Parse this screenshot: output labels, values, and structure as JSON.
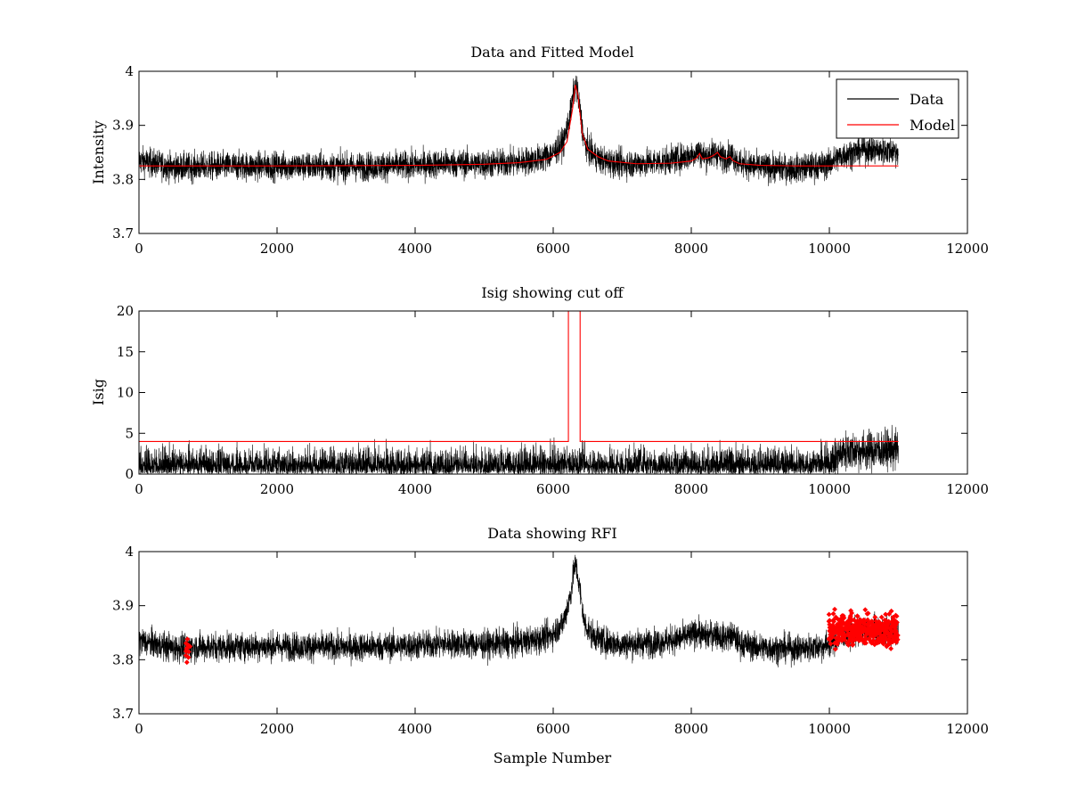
{
  "chart_data": [
    {
      "type": "line",
      "title": "Data and Fitted Model",
      "xlabel": "",
      "ylabel": "Intensity",
      "xlim": [
        0,
        12000
      ],
      "ylim": [
        3.7,
        4.0
      ],
      "xticks": [
        0,
        2000,
        4000,
        6000,
        8000,
        10000,
        12000
      ],
      "xtick_labels": [
        "0",
        "2000",
        "4000",
        "6000",
        "8000",
        "10000",
        "12000"
      ],
      "yticks": [
        3.7,
        3.8,
        3.9,
        4.0
      ],
      "ytick_labels": [
        "3.7",
        "3.8",
        "3.9",
        "4"
      ],
      "legend": {
        "location": "top-right",
        "entries": [
          "Data",
          "Model"
        ]
      },
      "series": [
        {
          "name": "Data",
          "color": "#000000",
          "kind": "noisy",
          "noise": 0.013,
          "x": [
            0,
            500,
            1000,
            2000,
            3000,
            4000,
            4500,
            5000,
            5500,
            5800,
            6000,
            6150,
            6250,
            6300,
            6330,
            6380,
            6450,
            6550,
            6700,
            7000,
            7500,
            7800,
            8000,
            8100,
            8200,
            8350,
            8450,
            8600,
            8700,
            9000,
            9500,
            9900,
            10000,
            10200,
            10500,
            11000
          ],
          "y": [
            3.835,
            3.822,
            3.824,
            3.825,
            3.823,
            3.826,
            3.83,
            3.828,
            3.832,
            3.838,
            3.848,
            3.87,
            3.92,
            3.965,
            3.975,
            3.935,
            3.868,
            3.848,
            3.835,
            3.828,
            3.832,
            3.838,
            3.845,
            3.852,
            3.842,
            3.85,
            3.84,
            3.845,
            3.83,
            3.822,
            3.82,
            3.825,
            3.83,
            3.845,
            3.855,
            3.852
          ]
        },
        {
          "name": "Model",
          "color": "#ff0000",
          "kind": "line",
          "x": [
            0,
            2000,
            4000,
            5000,
            5500,
            5900,
            6100,
            6200,
            6280,
            6320,
            6360,
            6420,
            6500,
            6650,
            6800,
            7200,
            7700,
            8000,
            8080,
            8120,
            8160,
            8250,
            8330,
            8380,
            8420,
            8500,
            8560,
            8600,
            8700,
            9000,
            9500,
            10000,
            11000
          ],
          "y": [
            3.825,
            3.825,
            3.826,
            3.828,
            3.831,
            3.837,
            3.85,
            3.87,
            3.93,
            3.975,
            3.955,
            3.885,
            3.856,
            3.842,
            3.834,
            3.829,
            3.83,
            3.834,
            3.84,
            3.848,
            3.838,
            3.84,
            3.845,
            3.85,
            3.842,
            3.838,
            3.842,
            3.835,
            3.829,
            3.826,
            3.825,
            3.825,
            3.825
          ]
        }
      ]
    },
    {
      "type": "line",
      "title": "Isig showing cut off",
      "xlabel": "",
      "ylabel": "Isig",
      "xlim": [
        0,
        12000
      ],
      "ylim": [
        0,
        20
      ],
      "xticks": [
        0,
        2000,
        4000,
        6000,
        8000,
        10000,
        12000
      ],
      "xtick_labels": [
        "0",
        "2000",
        "4000",
        "6000",
        "8000",
        "10000",
        "12000"
      ],
      "yticks": [
        0,
        5,
        10,
        15,
        20
      ],
      "ytick_labels": [
        "0",
        "5",
        "10",
        "15",
        "20"
      ],
      "series": [
        {
          "name": "Isig",
          "color": "#000000",
          "kind": "noisy",
          "noise": 1.2,
          "x": [
            0,
            9800,
            10000,
            10200,
            11000
          ],
          "y": [
            0.9,
            0.9,
            1.2,
            2.8,
            3.0
          ]
        },
        {
          "name": "Cut off",
          "color": "#ff0000",
          "kind": "line",
          "x": [
            0,
            6220,
            6220,
            6390,
            6390,
            11000
          ],
          "y": [
            4,
            4,
            20,
            20,
            4,
            4
          ]
        }
      ]
    },
    {
      "type": "line",
      "title": "Data showing RFI",
      "xlabel": "Sample Number",
      "ylabel": "",
      "xlim": [
        0,
        12000
      ],
      "ylim": [
        3.7,
        4.0
      ],
      "xticks": [
        0,
        2000,
        4000,
        6000,
        8000,
        10000,
        12000
      ],
      "xtick_labels": [
        "0",
        "2000",
        "4000",
        "6000",
        "8000",
        "10000",
        "12000"
      ],
      "yticks": [
        3.7,
        3.8,
        3.9,
        4.0
      ],
      "ytick_labels": [
        "3.7",
        "3.8",
        "3.9",
        "4"
      ],
      "series": [
        {
          "name": "Data",
          "color": "#000000",
          "kind": "noisy",
          "noise": 0.013,
          "x": [
            0,
            500,
            1000,
            2000,
            3000,
            4000,
            4500,
            5000,
            5500,
            5800,
            6000,
            6150,
            6250,
            6300,
            6330,
            6380,
            6450,
            6550,
            6700,
            7000,
            7500,
            7800,
            8000,
            8100,
            8200,
            8350,
            8450,
            8600,
            8700,
            9000,
            9500,
            9900,
            10000,
            10200,
            10500,
            11000
          ],
          "y": [
            3.835,
            3.822,
            3.824,
            3.825,
            3.823,
            3.826,
            3.83,
            3.828,
            3.832,
            3.838,
            3.848,
            3.87,
            3.92,
            3.965,
            3.975,
            3.935,
            3.868,
            3.848,
            3.835,
            3.828,
            3.832,
            3.838,
            3.845,
            3.852,
            3.842,
            3.85,
            3.84,
            3.845,
            3.83,
            3.822,
            3.82,
            3.825,
            3.83,
            3.845,
            3.855,
            3.852
          ]
        },
        {
          "name": "RFI",
          "color": "#ff0000",
          "kind": "markers",
          "regions": [
            {
              "x_start": 680,
              "x_end": 740,
              "y_center": 3.82,
              "y_spread": 0.02,
              "count": 14
            },
            {
              "x_start": 9980,
              "x_end": 11000,
              "y_center": 3.855,
              "y_spread": 0.023,
              "count": 420
            }
          ]
        }
      ]
    }
  ]
}
